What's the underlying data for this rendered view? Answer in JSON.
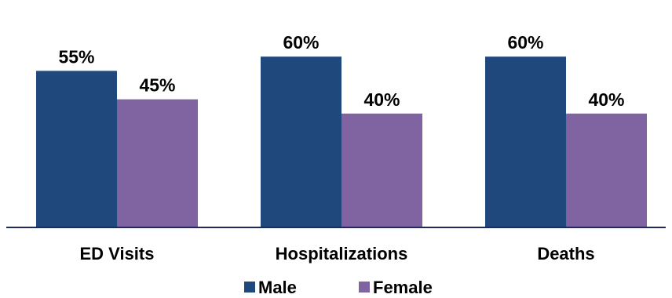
{
  "chart_data": {
    "type": "bar",
    "categories": [
      "ED Visits",
      "Hospitalizations",
      "Deaths"
    ],
    "series": [
      {
        "name": "Male",
        "values": [
          55,
          60,
          60
        ],
        "labels": [
          "55%",
          "60%",
          "60%"
        ],
        "color": "#1F497D"
      },
      {
        "name": "Female",
        "values": [
          45,
          40,
          40
        ],
        "labels": [
          "45%",
          "40%",
          "40%"
        ],
        "color": "#8064A2"
      }
    ],
    "ylim": [
      0,
      100
    ],
    "grid": false,
    "legend": "bottom-center",
    "axis_color": "#1F2A5C"
  }
}
